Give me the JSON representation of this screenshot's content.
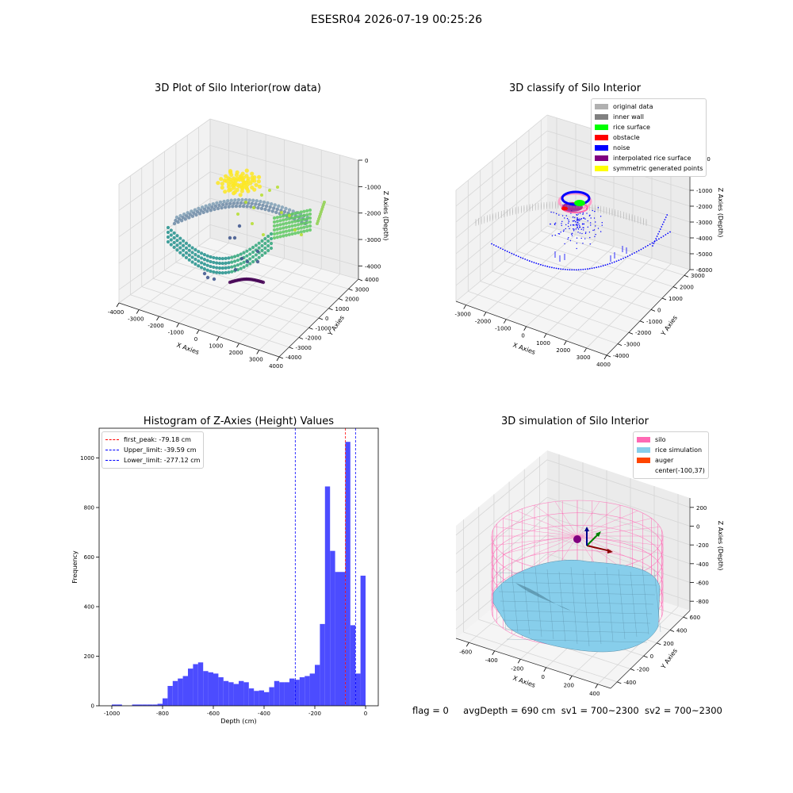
{
  "suptitle": "ESESR04 2026-07-19 00:25:26",
  "status": {
    "flag": "flag = 0",
    "avg_depth": "avgDepth = 690 cm",
    "sv1": "sv1 = 700~2300",
    "sv2": "sv2 = 700~2300"
  },
  "colors": {
    "viridis": [
      "#440154",
      "#3b528b",
      "#21918c",
      "#5ec962",
      "#fde725"
    ],
    "silo": "#ff69b4",
    "rice": "#87ceeb",
    "auger": "#ff4500",
    "hist_bar": "#4c4cff"
  },
  "chart_data": [
    {
      "type": "scatter3d",
      "title": "3D Plot of Silo Interior(row data)",
      "xlabel": "X Axies",
      "ylabel": "Y Axies",
      "zlabel": "Z Axies (Depth)",
      "x_ticks": [
        -4000,
        -3000,
        -2000,
        -1000,
        0,
        1000,
        2000,
        3000,
        4000
      ],
      "y_ticks": [
        -4000,
        -3000,
        -2000,
        -1000,
        0,
        1000,
        2000,
        3000,
        4000
      ],
      "z_ticks": [
        0,
        -1000,
        -2000,
        -3000,
        -4000
      ],
      "xlim": [
        -4000,
        4000
      ],
      "ylim": [
        -4000,
        4000
      ],
      "zlim": [
        -4500,
        0
      ],
      "colormap": "viridis",
      "grid": true
    },
    {
      "type": "scatter3d",
      "title": "3D classify of Silo Interior",
      "xlabel": "X Axies",
      "ylabel": "Y Axies",
      "zlabel": "Z Axies (Depth)",
      "x_ticks": [
        -3000,
        -2000,
        -1000,
        0,
        1000,
        2000,
        3000,
        4000
      ],
      "y_ticks": [
        -4000,
        -3000,
        -2000,
        -1000,
        0,
        1000,
        2000,
        3000
      ],
      "z_ticks": [
        1000,
        0,
        -1000,
        -2000,
        -3000,
        -4000,
        -5000,
        -6000
      ],
      "xlim": [
        -3500,
        4000
      ],
      "ylim": [
        -4000,
        3500
      ],
      "zlim": [
        -6000,
        1000
      ],
      "legend_position": "top-right",
      "legend": [
        {
          "label": "original data",
          "color": "#b0b0b0"
        },
        {
          "label": "inner wall",
          "color": "#808080"
        },
        {
          "label": "rice surface",
          "color": "#00ff00"
        },
        {
          "label": "obstacle",
          "color": "#ff0000"
        },
        {
          "label": "noise",
          "color": "#0000ff"
        },
        {
          "label": "interpolated rice surface",
          "color": "#800080"
        },
        {
          "label": "symmetric generated points",
          "color": "#ffff00"
        }
      ],
      "grid": true
    },
    {
      "type": "bar",
      "title": "Histogram of Z-Axies (Height) Values",
      "xlabel": "Depth (cm)",
      "ylabel": "Frequency",
      "xlim": [
        -1050,
        50
      ],
      "ylim": [
        0,
        1120
      ],
      "x_ticks": [
        -1000,
        -800,
        -600,
        -400,
        -200,
        0
      ],
      "y_ticks": [
        0,
        200,
        400,
        600,
        800,
        1000
      ],
      "bin_width": 20,
      "bin_starts": [
        -1000,
        -980,
        -960,
        -940,
        -920,
        -900,
        -880,
        -860,
        -840,
        -820,
        -800,
        -780,
        -760,
        -740,
        -720,
        -700,
        -680,
        -660,
        -640,
        -620,
        -600,
        -580,
        -560,
        -540,
        -520,
        -500,
        -480,
        -460,
        -440,
        -420,
        -400,
        -380,
        -360,
        -340,
        -320,
        -300,
        -280,
        -260,
        -240,
        -220,
        -200,
        -180,
        -160,
        -140,
        -120,
        -100,
        -80,
        -60,
        -40,
        -20
      ],
      "counts": [
        5,
        5,
        0,
        0,
        5,
        5,
        5,
        5,
        5,
        8,
        30,
        80,
        100,
        110,
        120,
        150,
        168,
        175,
        140,
        135,
        130,
        115,
        100,
        95,
        88,
        100,
        95,
        70,
        60,
        62,
        55,
        75,
        100,
        95,
        95,
        110,
        105,
        115,
        120,
        130,
        165,
        330,
        885,
        625,
        540,
        540,
        1065,
        325,
        130,
        525
      ],
      "vlines": [
        {
          "label": "first_peak: -79.18 cm",
          "x": -79.18,
          "color": "#ff0000"
        },
        {
          "label": "Upper_limit: -39.59 cm",
          "x": -39.59,
          "color": "#0000ff"
        },
        {
          "label": "Lower_limit: -277.12 cm",
          "x": -277.12,
          "color": "#0000ff"
        }
      ],
      "legend_position": "top-left",
      "grid": false
    },
    {
      "type": "surface3d",
      "title": "3D simulation of Silo Interior",
      "xlabel": "X Axies",
      "ylabel": "Y Axies",
      "zlabel": "Z Axies (Depth)",
      "x_ticks": [
        -600,
        -400,
        -200,
        0,
        200,
        400
      ],
      "y_ticks": [
        -400,
        -200,
        0,
        200,
        400,
        600
      ],
      "z_ticks": [
        200,
        0,
        -200,
        -400,
        -600,
        -800
      ],
      "xlim": [
        -700,
        500
      ],
      "ylim": [
        -500,
        700
      ],
      "zlim": [
        -900,
        300
      ],
      "legend_position": "top-right",
      "legend": [
        {
          "label": "silo",
          "color": "#ff69b4"
        },
        {
          "label": "rice simulation",
          "color": "#87ceeb"
        },
        {
          "label": "auger",
          "color": "#ff4500"
        },
        {
          "label": "center(-100,37)",
          "color": ""
        }
      ],
      "grid": true
    }
  ]
}
